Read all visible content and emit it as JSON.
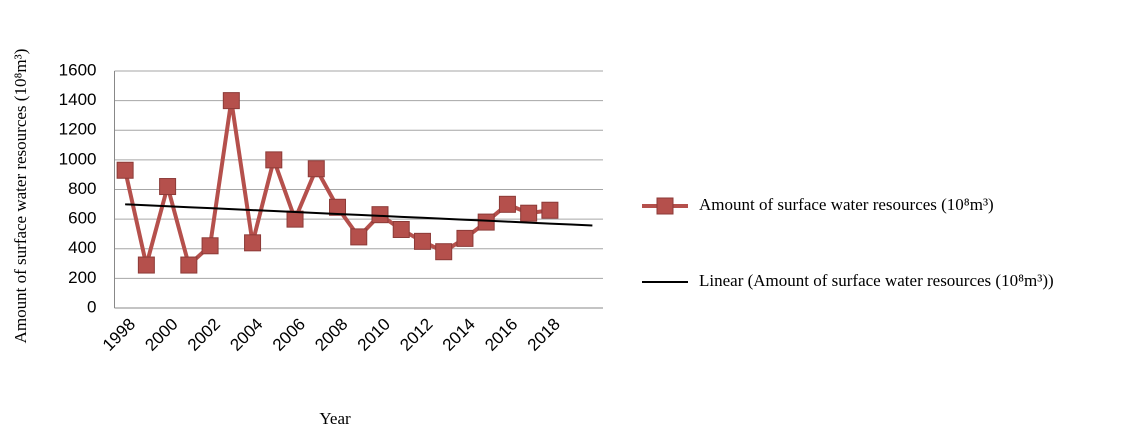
{
  "chart_data": {
    "type": "line",
    "x_label": "Year",
    "y_label": "Amount of surface water resources (10⁸m³)",
    "categories": [
      "1998",
      null,
      "2000",
      null,
      "2002",
      null,
      "2004",
      null,
      "2006",
      null,
      "2008",
      null,
      "2010",
      null,
      "2012",
      null,
      "2014",
      null,
      "2016",
      null,
      "2018",
      null,
      null
    ],
    "series": [
      {
        "name": "Amount of surface water resources (10⁸m³)",
        "color": "#b5504c",
        "markers": true,
        "values": [
          930,
          290,
          820,
          290,
          420,
          1400,
          440,
          1000,
          600,
          940,
          680,
          480,
          630,
          530,
          450,
          380,
          470,
          580,
          700,
          640,
          660,
          null,
          null
        ]
      },
      {
        "name": "Linear (Amount of surface water resources (10⁸m³))",
        "color": "#000000",
        "markers": false,
        "values": [
          700,
          693.5,
          687,
          680.5,
          674,
          667.5,
          661,
          654.5,
          648,
          641.5,
          635,
          628.5,
          622,
          615.5,
          609,
          602.5,
          596,
          589.5,
          583,
          576.5,
          570,
          563.5,
          557
        ]
      }
    ],
    "ylim": [
      0,
      1600
    ],
    "yticks": [
      0,
      200,
      400,
      600,
      800,
      1000,
      1200,
      1400,
      1600
    ],
    "grid": true,
    "legend": "right"
  }
}
